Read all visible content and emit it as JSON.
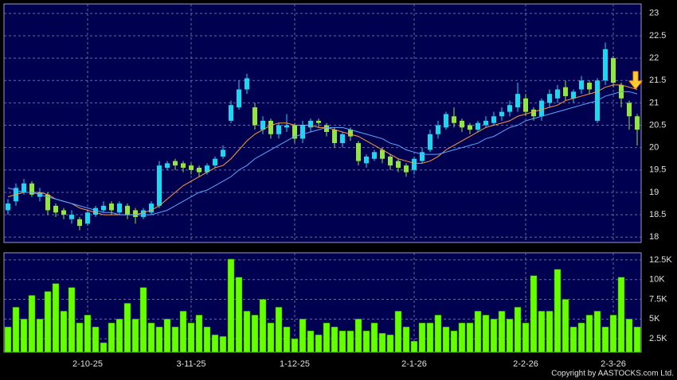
{
  "chart_data": {
    "type": "candlestick",
    "categories": [
      null,
      null,
      null,
      null,
      null,
      null,
      null,
      null,
      null,
      null,
      "2-10-25",
      null,
      null,
      null,
      null,
      null,
      null,
      null,
      null,
      null,
      null,
      null,
      null,
      "3-11-25",
      null,
      null,
      null,
      null,
      null,
      null,
      null,
      null,
      null,
      null,
      null,
      null,
      "1-12-25",
      null,
      null,
      null,
      null,
      null,
      null,
      null,
      null,
      null,
      null,
      null,
      null,
      null,
      null,
      "2-1-26",
      null,
      null,
      null,
      null,
      null,
      null,
      null,
      null,
      null,
      null,
      null,
      null,
      null,
      "2-2-26",
      null,
      null,
      null,
      null,
      null,
      null,
      null,
      null,
      null,
      null,
      "2-3-26",
      null,
      null,
      null
    ],
    "open": [
      18.6,
      18.8,
      19.0,
      19.2,
      18.9,
      18.95,
      18.7,
      18.6,
      18.4,
      18.4,
      18.3,
      18.5,
      18.6,
      18.75,
      18.55,
      18.7,
      18.6,
      18.45,
      18.55,
      18.7,
      19.55,
      19.7,
      19.65,
      19.6,
      19.55,
      19.45,
      19.6,
      19.8,
      20.6,
      20.9,
      21.3,
      20.9,
      20.4,
      20.6,
      20.3,
      20.45,
      20.5,
      20.2,
      20.45,
      20.6,
      20.5,
      20.4,
      20.1,
      20.4,
      20.1,
      19.65,
      19.75,
      19.95,
      19.8,
      19.7,
      19.6,
      19.5,
      19.7,
      19.95,
      20.3,
      20.45,
      20.7,
      20.6,
      20.5,
      20.4,
      20.5,
      20.55,
      20.7,
      20.8,
      20.9,
      21.1,
      20.85,
      20.7,
      21.0,
      21.1,
      21.35,
      21.1,
      21.3,
      21.45,
      20.6,
      21.5,
      22.0,
      21.4,
      21.0,
      20.7
    ],
    "high": [
      18.85,
      19.2,
      19.3,
      19.25,
      19.1,
      19.0,
      18.75,
      18.65,
      18.6,
      18.45,
      18.6,
      18.7,
      18.8,
      18.8,
      18.8,
      18.75,
      18.65,
      18.65,
      18.8,
      19.7,
      19.7,
      19.75,
      19.7,
      19.65,
      19.6,
      19.65,
      19.8,
      20.05,
      21.05,
      21.5,
      21.65,
      21.0,
      20.7,
      20.65,
      20.55,
      20.75,
      20.55,
      20.6,
      20.65,
      20.65,
      20.55,
      20.45,
      20.35,
      20.45,
      20.15,
      19.85,
      19.95,
      20.0,
      19.85,
      19.75,
      19.65,
      19.8,
      20.0,
      20.4,
      20.6,
      20.8,
      20.9,
      20.65,
      20.55,
      20.6,
      20.7,
      20.8,
      20.9,
      21.05,
      21.45,
      21.2,
      20.9,
      21.1,
      21.3,
      21.4,
      21.5,
      21.3,
      21.6,
      21.5,
      21.55,
      22.35,
      22.05,
      21.45,
      21.05,
      20.75
    ],
    "low": [
      18.5,
      18.7,
      18.95,
      18.9,
      18.8,
      18.5,
      18.45,
      18.4,
      18.3,
      18.15,
      18.25,
      18.45,
      18.55,
      18.5,
      18.5,
      18.4,
      18.3,
      18.4,
      18.5,
      18.65,
      19.5,
      19.5,
      19.45,
      19.4,
      19.35,
      19.4,
      19.55,
      19.75,
      20.55,
      20.85,
      21.2,
      20.4,
      20.3,
      20.2,
      20.2,
      20.35,
      20.1,
      20.1,
      20.35,
      20.45,
      20.25,
      20.0,
      20.0,
      20.15,
      19.6,
      19.55,
      19.7,
      19.65,
      19.5,
      19.45,
      19.35,
      19.4,
      19.65,
      19.9,
      20.2,
      20.4,
      20.45,
      20.35,
      20.3,
      20.35,
      20.45,
      20.5,
      20.6,
      20.7,
      20.8,
      20.7,
      20.6,
      20.6,
      20.9,
      21.0,
      21.05,
      21.0,
      21.2,
      21.2,
      20.55,
      21.4,
      21.35,
      20.9,
      20.4,
      20.05
    ],
    "close": [
      18.75,
      19.1,
      19.2,
      18.95,
      19.0,
      18.6,
      18.55,
      18.5,
      18.5,
      18.25,
      18.55,
      18.65,
      18.7,
      18.6,
      18.75,
      18.5,
      18.45,
      18.6,
      18.75,
      19.6,
      19.65,
      19.6,
      19.55,
      19.5,
      19.45,
      19.6,
      19.75,
      19.95,
      20.95,
      21.3,
      21.55,
      20.5,
      20.6,
      20.3,
      20.5,
      20.5,
      20.2,
      20.5,
      20.6,
      20.55,
      20.35,
      20.1,
      20.3,
      20.25,
      19.7,
      19.8,
      19.9,
      19.75,
      19.6,
      19.55,
      19.45,
      19.75,
      19.9,
      20.3,
      20.5,
      20.75,
      20.55,
      20.45,
      20.4,
      20.55,
      20.6,
      20.7,
      20.8,
      20.95,
      21.2,
      20.8,
      20.7,
      21.05,
      21.2,
      21.3,
      21.15,
      21.25,
      21.5,
      21.3,
      21.5,
      22.2,
      21.45,
      21.1,
      20.7,
      20.4
    ],
    "up_color": "#19d8f0",
    "down_color": "#8fe83a",
    "ylim": [
      17.88,
      23.21
    ],
    "yticks": [
      18,
      18.5,
      19,
      19.5,
      20,
      20.5,
      21,
      21.5,
      22,
      22.5,
      23
    ],
    "grid": true,
    "moving_averages": [
      {
        "color": "#ff9a3c",
        "values": [
          18.9,
          18.95,
          19.0,
          19.0,
          19.0,
          18.95,
          18.85,
          18.8,
          18.75,
          18.65,
          18.6,
          18.55,
          18.5,
          18.5,
          18.5,
          18.5,
          18.5,
          18.55,
          18.6,
          18.7,
          18.85,
          19.0,
          19.15,
          19.25,
          19.35,
          19.45,
          19.55,
          19.6,
          19.75,
          19.95,
          20.15,
          20.3,
          20.4,
          20.5,
          20.55,
          20.55,
          20.5,
          20.5,
          20.5,
          20.45,
          20.45,
          20.4,
          20.35,
          20.3,
          20.25,
          20.15,
          20.05,
          19.95,
          19.85,
          19.75,
          19.7,
          19.65,
          19.65,
          19.7,
          19.8,
          19.95,
          20.05,
          20.15,
          20.25,
          20.35,
          20.45,
          20.5,
          20.55,
          20.6,
          20.7,
          20.75,
          20.8,
          20.85,
          20.9,
          20.95,
          21.05,
          21.1,
          21.15,
          21.2,
          21.25,
          21.35,
          21.4,
          21.4,
          21.35,
          21.3
        ]
      },
      {
        "color": "#5aa8ff",
        "values": [
          19.1,
          19.05,
          19.0,
          19.0,
          18.95,
          18.9,
          18.85,
          18.8,
          18.75,
          18.7,
          18.65,
          18.6,
          18.55,
          18.55,
          18.5,
          18.5,
          18.5,
          18.5,
          18.5,
          18.55,
          18.6,
          18.7,
          18.8,
          18.9,
          19.0,
          19.05,
          19.15,
          19.25,
          19.35,
          19.5,
          19.6,
          19.75,
          19.85,
          19.95,
          20.05,
          20.15,
          20.25,
          20.3,
          20.35,
          20.4,
          20.45,
          20.45,
          20.45,
          20.4,
          20.35,
          20.3,
          20.25,
          20.2,
          20.1,
          20.05,
          19.95,
          19.9,
          19.85,
          19.85,
          19.85,
          19.9,
          19.95,
          20.0,
          20.05,
          20.1,
          20.2,
          20.25,
          20.35,
          20.45,
          20.5,
          20.6,
          20.65,
          20.7,
          20.75,
          20.8,
          20.85,
          20.9,
          20.95,
          21.0,
          21.05,
          21.15,
          21.2,
          21.25,
          21.25,
          21.2
        ]
      }
    ],
    "volume": {
      "type": "bar",
      "color": "#66ff00",
      "values": [
        4000,
        6500,
        5000,
        8000,
        5000,
        8500,
        9500,
        6000,
        9000,
        4500,
        5500,
        4000,
        2000,
        4500,
        5000,
        7000,
        5000,
        9000,
        4500,
        4000,
        5000,
        4000,
        6000,
        4500,
        5500,
        4000,
        3000,
        2800,
        12600,
        10300,
        6000,
        5500,
        7500,
        4500,
        6500,
        4000,
        2500,
        5000,
        3500,
        3000,
        4500,
        4000,
        3500,
        3500,
        5000,
        3500,
        4500,
        3200,
        3000,
        6000,
        4000,
        2200,
        4500,
        4500,
        5500,
        4000,
        3500,
        4500,
        4500,
        6000,
        5500,
        5000,
        6000,
        5000,
        6500,
        4500,
        10500,
        6000,
        6000,
        11300,
        7500,
        4000,
        4500,
        5500,
        6000,
        4000,
        5500,
        10300,
        5000,
        4000
      ],
      "ylim": [
        800,
        13400
      ],
      "yticks": [
        {
          "value": 2500,
          "label": "2.5K"
        },
        {
          "value": 5000,
          "label": "5K"
        },
        {
          "value": 7500,
          "label": "7.5K"
        },
        {
          "value": 10000,
          "label": "10K"
        },
        {
          "value": 12500,
          "label": "12.5K"
        }
      ]
    }
  },
  "copyright": "Copyright by AASTOCKS.com Ltd."
}
